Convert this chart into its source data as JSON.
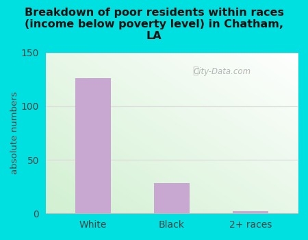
{
  "categories": [
    "White",
    "Black",
    "2+ races"
  ],
  "values": [
    126,
    28,
    2
  ],
  "bar_color": "#c8a8d0",
  "title": "Breakdown of poor residents within races\n(income below poverty level) in Chatham,\nLA",
  "ylabel": "absolute numbers",
  "ylim": [
    0,
    150
  ],
  "yticks": [
    0,
    50,
    100,
    150
  ],
  "title_fontsize": 11.5,
  "label_fontsize": 9.5,
  "tick_fontsize": 10,
  "background_outer": "#00e0e0",
  "watermark": "City-Data.com",
  "grid_color": "#dddddd",
  "bar_width": 0.45
}
